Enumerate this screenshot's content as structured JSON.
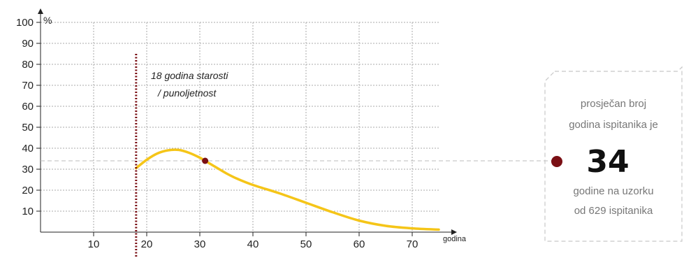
{
  "chart_data": {
    "type": "line",
    "title": "",
    "xlabel": "godina",
    "ylabel": "%",
    "xlim": [
      0,
      75
    ],
    "ylim": [
      0,
      100
    ],
    "x_ticks": [
      10,
      20,
      30,
      40,
      50,
      60,
      70
    ],
    "y_ticks": [
      10,
      20,
      30,
      40,
      50,
      60,
      70,
      80,
      90,
      100
    ],
    "grid": true,
    "series": [
      {
        "color": "#f5c518",
        "x": [
          18,
          20,
          22,
          24,
          26,
          28,
          30,
          31,
          33,
          35,
          37,
          40,
          45,
          50,
          55,
          60,
          65,
          70,
          75
        ],
        "y": [
          30.5,
          34.5,
          37.5,
          39,
          39.2,
          37.8,
          35.5,
          34,
          31,
          28,
          25.5,
          22.5,
          18.5,
          14,
          9.5,
          5.5,
          3,
          1.8,
          1.2
        ]
      }
    ],
    "highlight_point": {
      "x": 31,
      "y": 34,
      "color": "#7a0f14"
    },
    "reference_line": {
      "x": 18,
      "y_max": 85,
      "color": "#7a0f14",
      "label_line1": "18 godina starosti",
      "label_line2": "/ punoljetnost"
    },
    "mean_line_y": 34
  },
  "summary": {
    "line1": "prosječan broj",
    "line2": "godina ispitanika je",
    "value": "34",
    "line3": "godine na uzorku",
    "line4": "od 629 ispitanika"
  },
  "colors": {
    "grid": "#aaaaaa",
    "curve": "#f5c518",
    "marker": "#7a0f14",
    "box_border": "#c8c8c8"
  }
}
